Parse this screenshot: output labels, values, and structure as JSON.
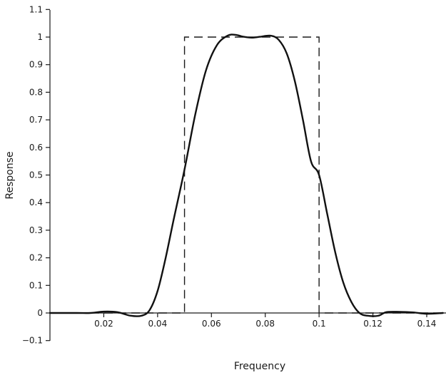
{
  "chart_data": {
    "type": "line",
    "xlabel": "Frequency",
    "ylabel": "Response",
    "xlim": [
      0,
      0.146
    ],
    "ylim": [
      -0.11,
      1.1
    ],
    "xticks": [
      0.02,
      0.04,
      0.06,
      0.08,
      0.1,
      0.12,
      0.14
    ],
    "xtick_labels": [
      "0.02",
      "0.04",
      "0.06",
      "0.08",
      "0.1",
      "0.12",
      "0.14"
    ],
    "yticks": [
      -0.1,
      0,
      0.1,
      0.2,
      0.3,
      0.4,
      0.5,
      0.6,
      0.7,
      0.8,
      0.9,
      1,
      1.1
    ],
    "ytick_labels": [
      "−0.1",
      "0",
      "0.1",
      "0.2",
      "0.3",
      "0.4",
      "0.5",
      "0.6",
      "0.7",
      "0.8",
      "0.9",
      "1",
      "1.1"
    ],
    "grid": false,
    "series": [
      {
        "style": "dashed",
        "x": [
          0,
          0.05,
          0.05,
          0.1,
          0.1,
          0.146
        ],
        "y": [
          0,
          0,
          1,
          1,
          0,
          0
        ]
      },
      {
        "style": "solid",
        "x": [
          0,
          0.01,
          0.015,
          0.02,
          0.025,
          0.03,
          0.034,
          0.037,
          0.04,
          0.043,
          0.046,
          0.05,
          0.054,
          0.058,
          0.062,
          0.066,
          0.069,
          0.072,
          0.075,
          0.078,
          0.082,
          0.085,
          0.088,
          0.091,
          0.094,
          0.097,
          0.1,
          0.103,
          0.106,
          0.109,
          0.112,
          0.115,
          0.118,
          0.122,
          0.125,
          0.13,
          0.135,
          0.14,
          0.146
        ],
        "y": [
          0,
          0,
          0,
          0.005,
          0.003,
          -0.01,
          -0.01,
          0.01,
          0.08,
          0.2,
          0.34,
          0.52,
          0.72,
          0.88,
          0.97,
          1.005,
          1.008,
          1.001,
          0.998,
          1.001,
          1.005,
          0.99,
          0.94,
          0.84,
          0.7,
          0.55,
          0.5,
          0.36,
          0.22,
          0.11,
          0.04,
          0.0,
          -0.01,
          -0.01,
          0.003,
          0.004,
          0.002,
          -0.003,
          0
        ]
      }
    ]
  }
}
